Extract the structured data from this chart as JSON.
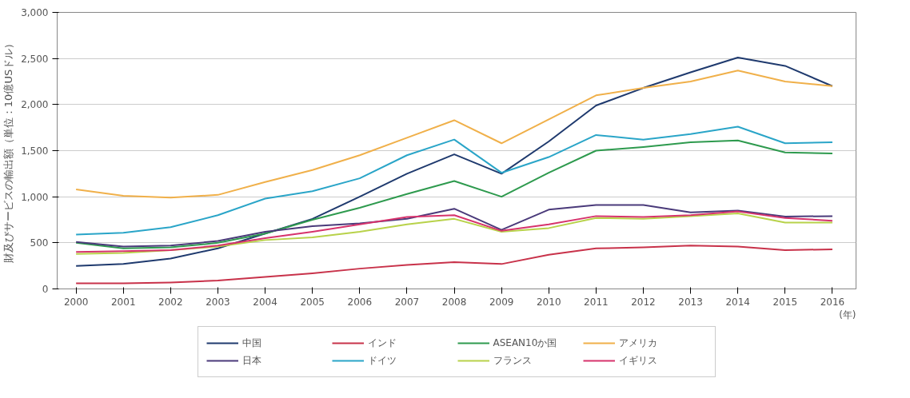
{
  "chart_data": {
    "type": "line",
    "ylabel": "財及びサービスの輸出額（単位：10億USドル）",
    "xlabel": "(年)",
    "x": [
      2000,
      2001,
      2002,
      2003,
      2004,
      2005,
      2006,
      2007,
      2008,
      2009,
      2010,
      2011,
      2012,
      2013,
      2014,
      2015,
      2016
    ],
    "xlim": [
      1999.6,
      2016.5
    ],
    "xticks": [
      2000,
      2001,
      2002,
      2003,
      2004,
      2005,
      2006,
      2007,
      2008,
      2009,
      2010,
      2011,
      2012,
      2013,
      2014,
      2015,
      2016
    ],
    "ylim": [
      0,
      3000
    ],
    "yticks": [
      {
        "value": 0,
        "label": "0"
      },
      {
        "value": 500,
        "label": "500"
      },
      {
        "value": 1000,
        "label": "1,000"
      },
      {
        "value": 1500,
        "label": "1,500"
      },
      {
        "value": 2000,
        "label": "2,000"
      },
      {
        "value": 2500,
        "label": "2,500"
      },
      {
        "value": 3000,
        "label": "3,000"
      }
    ],
    "grid": "y",
    "legend": "bottom",
    "series": [
      {
        "name": "中国",
        "color": "#1f3a6e",
        "values": [
          250,
          270,
          330,
          440,
          600,
          760,
          1000,
          1250,
          1460,
          1250,
          1600,
          1990,
          2180,
          2350,
          2510,
          2420,
          2200
        ]
      },
      {
        "name": "インド",
        "color": "#c8324a",
        "values": [
          60,
          60,
          70,
          90,
          130,
          170,
          220,
          260,
          290,
          270,
          370,
          440,
          450,
          470,
          460,
          420,
          430
        ]
      },
      {
        "name": "ASEAN10か国",
        "color": "#2e9a4e",
        "values": [
          500,
          440,
          450,
          500,
          600,
          750,
          880,
          1030,
          1170,
          1000,
          1260,
          1500,
          1540,
          1590,
          1610,
          1480,
          1470
        ]
      },
      {
        "name": "アメリカ",
        "color": "#f0b04a",
        "values": [
          1080,
          1010,
          990,
          1020,
          1160,
          1290,
          1450,
          1640,
          1830,
          1580,
          1840,
          2100,
          2180,
          2250,
          2370,
          2250,
          2200
        ]
      },
      {
        "name": "日本",
        "color": "#4a3a7a",
        "values": [
          510,
          460,
          470,
          520,
          620,
          680,
          710,
          760,
          870,
          640,
          860,
          910,
          910,
          830,
          850,
          785,
          790
        ]
      },
      {
        "name": "ドイツ",
        "color": "#2aa5c8",
        "values": [
          590,
          610,
          670,
          800,
          980,
          1060,
          1200,
          1450,
          1620,
          1260,
          1430,
          1670,
          1620,
          1680,
          1760,
          1580,
          1590
        ]
      },
      {
        "name": "フランス",
        "color": "#b8d24a",
        "values": [
          380,
          390,
          420,
          460,
          530,
          560,
          620,
          700,
          760,
          620,
          660,
          770,
          760,
          790,
          820,
          720,
          720
        ]
      },
      {
        "name": "イギリス",
        "color": "#d6336c",
        "values": [
          400,
          410,
          420,
          470,
          550,
          620,
          700,
          780,
          800,
          630,
          700,
          790,
          780,
          800,
          840,
          770,
          740
        ]
      }
    ]
  }
}
